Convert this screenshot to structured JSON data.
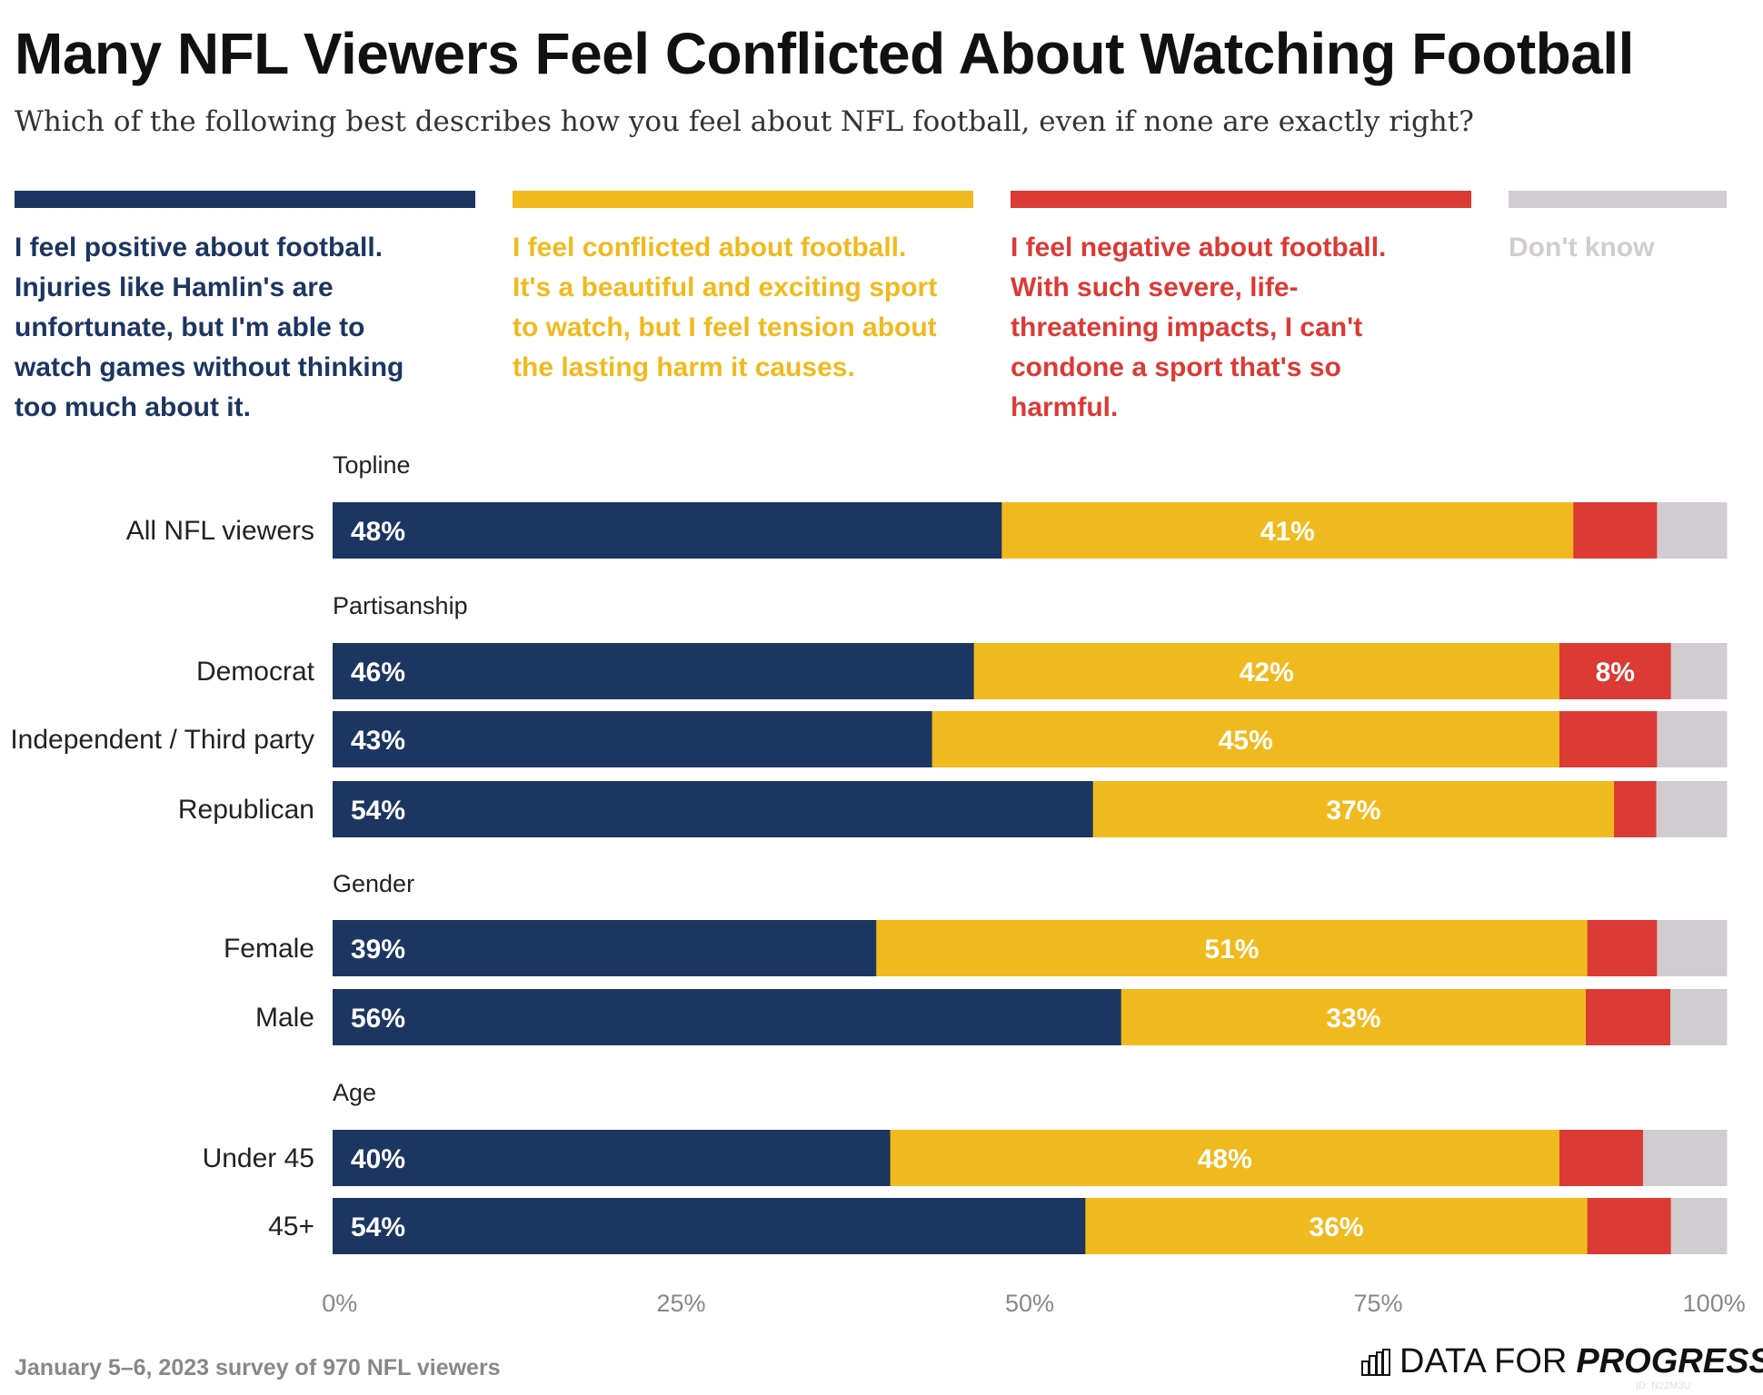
{
  "title": "Many NFL Viewers Feel Conflicted About Watching Football",
  "subtitle": "Which of the following best describes how you feel about NFL football, even if none are exactly right?",
  "legend": [
    {
      "label": "I feel positive about football. Injuries like Hamlin's are unfortunate, but I'm able to watch games without thinking too much about it.",
      "color": "#1c3661"
    },
    {
      "label": "I feel conflicted about football. It's a beautiful and exciting sport to watch, but I feel tension about the lasting harm it causes.",
      "color": "#f0ba1e"
    },
    {
      "label": "I feel negative about football. With such severe, life-threatening impacts, I can't condone a sport that's so harmful.",
      "color": "#dc3a35"
    },
    {
      "label": "Don't know",
      "color": "#d0ccd0"
    }
  ],
  "chart_data": {
    "type": "bar",
    "stacked": true,
    "orientation": "horizontal",
    "xlim": [
      0,
      100
    ],
    "x_ticks": [
      "0%",
      "25%",
      "50%",
      "75%",
      "100%"
    ],
    "groups": [
      {
        "label": "Topline",
        "rows": [
          {
            "label": "All NFL viewers",
            "values": [
              48,
              41,
              6,
              5
            ]
          }
        ]
      },
      {
        "label": "Partisanship",
        "rows": [
          {
            "label": "Democrat",
            "values": [
              46,
              42,
              8,
              4
            ]
          },
          {
            "label": "Independent / Third party",
            "values": [
              43,
              45,
              7,
              5
            ]
          },
          {
            "label": "Republican",
            "values": [
              54,
              37,
              3,
              5
            ]
          }
        ]
      },
      {
        "label": "Gender",
        "rows": [
          {
            "label": "Female",
            "values": [
              39,
              51,
              5,
              5
            ]
          },
          {
            "label": "Male",
            "values": [
              56,
              33,
              6,
              4
            ]
          }
        ]
      },
      {
        "label": "Age",
        "rows": [
          {
            "label": "Under 45",
            "values": [
              40,
              48,
              6,
              6
            ]
          },
          {
            "label": "45+",
            "values": [
              54,
              36,
              6,
              4
            ]
          }
        ]
      }
    ],
    "data_labels": [
      [
        "48%",
        "41%",
        "",
        ""
      ],
      [
        "46%",
        "42%",
        "8%",
        ""
      ],
      [
        "43%",
        "45%",
        "",
        ""
      ],
      [
        "54%",
        "37%",
        "",
        ""
      ],
      [
        "39%",
        "51%",
        "",
        ""
      ],
      [
        "56%",
        "33%",
        "",
        ""
      ],
      [
        "40%",
        "48%",
        "",
        ""
      ],
      [
        "54%",
        "36%",
        "",
        ""
      ]
    ]
  },
  "footer": "January 5–6, 2023 survey of 970 NFL viewers",
  "logo": {
    "light": "DATA FOR",
    "bold": "PROGRESS"
  },
  "id_text": "ID: N22M3U"
}
